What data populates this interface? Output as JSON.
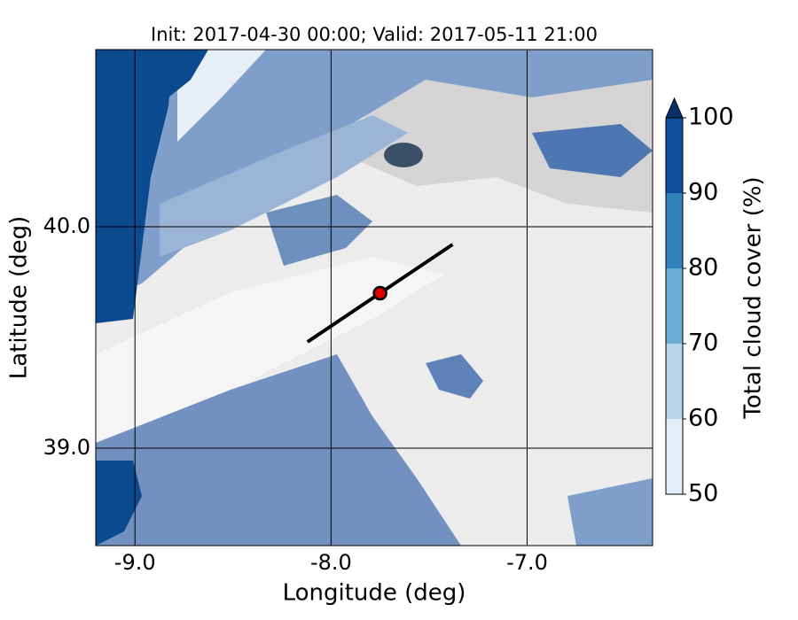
{
  "chart_data": {
    "type": "map",
    "title": "Init: 2017-04-30 00:00; Valid: 2017-05-11 21:00",
    "x_label": "Longitude (deg)",
    "y_label": "Latitude (deg)",
    "xlim": [
      -9.2,
      -6.36
    ],
    "ylim": [
      38.56,
      40.8
    ],
    "xticks": [
      {
        "value": -9,
        "label": "-9.0"
      },
      {
        "value": -8,
        "label": "-8.0"
      },
      {
        "value": -7,
        "label": "-7.0"
      }
    ],
    "yticks": [
      {
        "value": 39,
        "label": "39.0"
      },
      {
        "value": 40,
        "label": "40.0"
      }
    ],
    "grid": true,
    "marker": {
      "x": -7.75,
      "y": 39.7,
      "color": "#e00000"
    },
    "transect": {
      "x": [
        -8.12,
        -7.38
      ],
      "y": [
        39.48,
        39.92
      ],
      "color": "#000000"
    },
    "colorbar": {
      "label": "Total cloud cover (%)",
      "ticks": [
        50,
        60,
        70,
        80,
        90,
        100
      ],
      "colors": [
        "#e3edf7",
        "#b8d3ea",
        "#6aaed6",
        "#3182bd",
        "#0b4f9a"
      ],
      "extend": "max",
      "extend_color": "#08306b"
    }
  }
}
